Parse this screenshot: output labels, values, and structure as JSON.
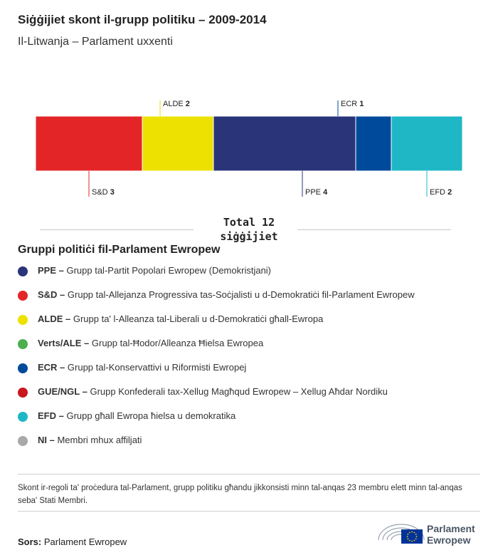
{
  "header": {
    "title": "Siġġijiet skont il-grupp politiku – 2009-2014",
    "subtitle": "Il-Litwanja – Parlament uxxenti"
  },
  "chart_data": {
    "type": "bar",
    "orientation": "stacked-horizontal",
    "categories": [
      "S&D",
      "ALDE",
      "PPE",
      "ECR",
      "EFD"
    ],
    "values": [
      3,
      2,
      4,
      1,
      2
    ],
    "colors": [
      "#e42527",
      "#ece100",
      "#2a3479",
      "#004a9c",
      "#1fb7c6"
    ],
    "label_positions": [
      "below",
      "above",
      "below",
      "above",
      "below"
    ],
    "total": 12
  },
  "total_label": "Total 12 siġġijiet",
  "legend": {
    "title": "Gruppi politiċi fil-Parlament Ewropew",
    "items": [
      {
        "abbr": "PPE –",
        "desc": "Grupp tal-Partit Popolari Ewropew (Demokristjani)",
        "color": "#2a3479"
      },
      {
        "abbr": "S&D –",
        "desc": "Grupp tal-Allejanza Progressiva tas-Soċjalisti u d-Demokratiċi fil-Parlament Ewropew",
        "color": "#e42527"
      },
      {
        "abbr": "ALDE –",
        "desc": "Grupp ta' l-Alleanza tal-Liberali u d-Demokratiċi għall-Ewropa",
        "color": "#ece100"
      },
      {
        "abbr": "Verts/ALE –",
        "desc": "Grupp tal-Ħodor/Alleanza Ħielsa Ewropea",
        "color": "#4daf50"
      },
      {
        "abbr": "ECR –",
        "desc": "Grupp tal-Konservattivi u Riformisti Ewropej",
        "color": "#004a9c"
      },
      {
        "abbr": "GUE/NGL –",
        "desc": "Grupp Konfederali tax-Xellug Magħqud Ewropew – Xellug Aħdar Nordiku",
        "color": "#c8171e"
      },
      {
        "abbr": "EFD –",
        "desc": "Grupp għall Ewropa ħielsa u demokratika",
        "color": "#1fb7c6"
      },
      {
        "abbr": "NI –",
        "desc": "Membri mhux affiljati",
        "color": "#a9a9a9"
      }
    ]
  },
  "note": "Skont ir-regoli ta' proċedura tal-Parlament, grupp politiku għandu jikkonsisti minn tal-anqas 23 membru elett minn tal-anqas seba' Stati Membri.",
  "source": {
    "label": "Sors:",
    "value": "Parlament Ewropew"
  },
  "logo": {
    "line1": "Parlament",
    "line2": "Ewropew",
    "flag_color": "#003399",
    "star_color": "#ffcc00"
  }
}
